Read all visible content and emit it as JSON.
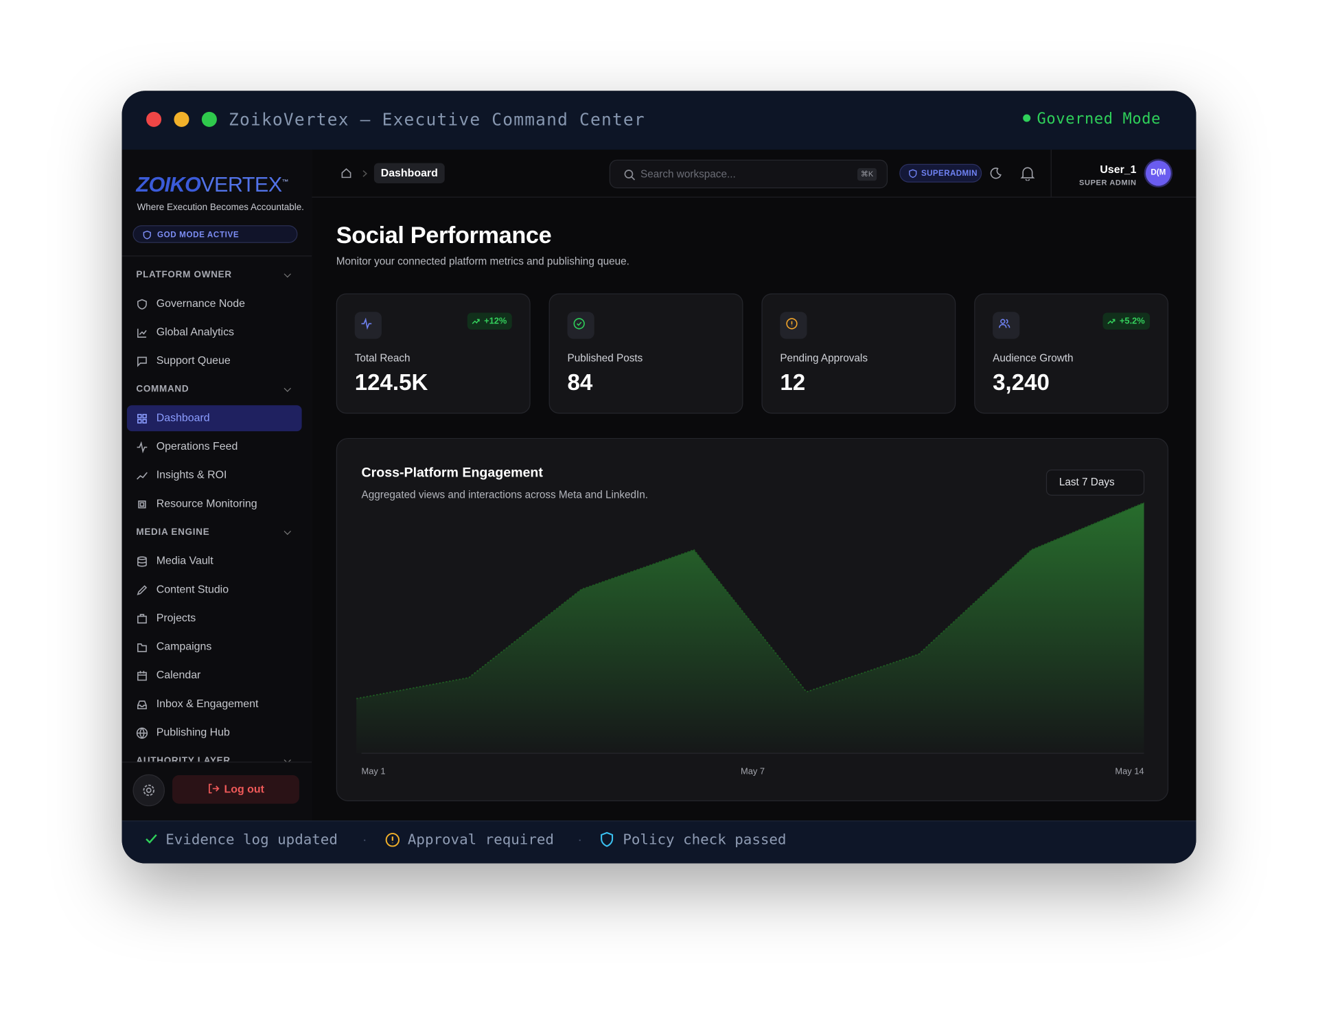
{
  "window": {
    "title": "ZoikoVertex — Executive Command Center",
    "mode": "Governed Mode"
  },
  "sidebar": {
    "logo": {
      "first": "ZOIKO",
      "second": "VERTEX",
      "mark": "™"
    },
    "tagline": "Where Execution Becomes Accountable.",
    "badge": "GOD MODE ACTIVE",
    "sections": [
      {
        "title": "PLATFORM OWNER",
        "items": [
          "Governance Node",
          "Global Analytics",
          "Support Queue"
        ]
      },
      {
        "title": "COMMAND",
        "items": [
          "Dashboard",
          "Operations Feed",
          "Insights & ROI",
          "Resource Monitoring"
        ]
      },
      {
        "title": "MEDIA ENGINE",
        "items": [
          "Media Vault",
          "Content Studio",
          "Projects",
          "Campaigns",
          "Calendar",
          "Inbox & Engagement",
          "Publishing Hub"
        ]
      },
      {
        "title": "AUTHORITY LAYER",
        "items": []
      }
    ],
    "active": "Dashboard",
    "logout": "Log out"
  },
  "topbar": {
    "breadcrumb": "Dashboard",
    "search": "Search workspace...",
    "shortcut": "⌘K",
    "badge": "SUPERADMIN",
    "user": "User_1",
    "role": "SUPER ADMIN",
    "avatar": "D(M"
  },
  "page": {
    "title": "Social Performance",
    "subtitle": "Monitor your connected platform metrics and publishing queue."
  },
  "stats": [
    {
      "label": "Total Reach",
      "value": "124.5K",
      "trend": "+12%"
    },
    {
      "label": "Published Posts",
      "value": "84",
      "trend": null
    },
    {
      "label": "Pending Approvals",
      "value": "12",
      "trend": null
    },
    {
      "label": "Audience Growth",
      "value": "3,240",
      "trend": "+5.2%"
    }
  ],
  "chart_data": {
    "type": "area",
    "title": "Cross-Platform Engagement",
    "subtitle": "Aggregated views and interactions across Meta and LinkedIn.",
    "range": "Last 7 Days",
    "x_labels": [
      "May 1",
      "May 7",
      "May 14"
    ],
    "values": [
      65,
      90,
      195,
      242,
      73,
      118,
      242,
      298
    ],
    "ylim": [
      0,
      300
    ],
    "color": "#2e8b34"
  },
  "status": [
    "Evidence log updated",
    "Approval required",
    "Policy check passed"
  ]
}
